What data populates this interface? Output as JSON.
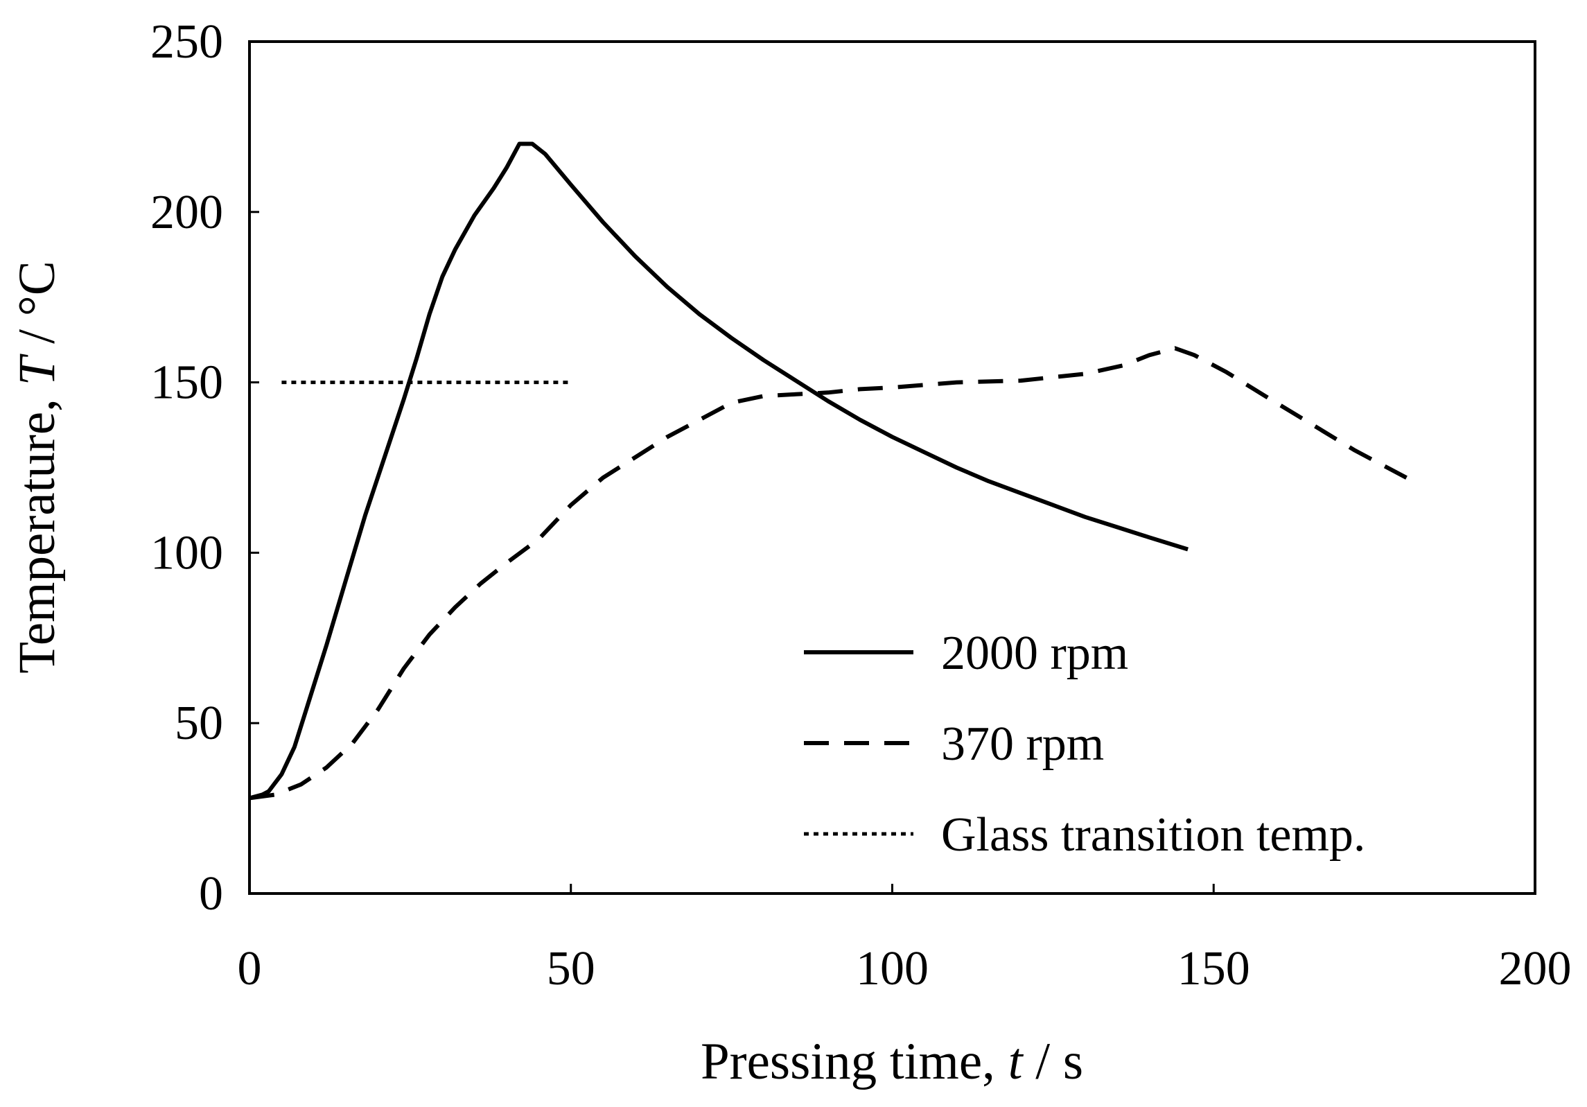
{
  "chart_data": {
    "type": "line",
    "title": "",
    "xlabel": {
      "main": "Pressing time, ",
      "var": "t",
      "unit": " / s"
    },
    "ylabel": {
      "main": "Temperature, ",
      "var": "T",
      "unit": " / °C"
    },
    "xlim": [
      0,
      200
    ],
    "ylim": [
      0,
      250
    ],
    "xticks": [
      0,
      50,
      100,
      150,
      200
    ],
    "yticks": [
      0,
      50,
      100,
      150,
      200,
      250
    ],
    "grid": false,
    "legend_position": "bottom-right",
    "series": [
      {
        "name": "2000 rpm",
        "style": "solid",
        "color": "#000000",
        "points": [
          [
            0,
            28
          ],
          [
            2,
            29
          ],
          [
            3,
            30
          ],
          [
            5,
            35
          ],
          [
            7,
            43
          ],
          [
            9,
            55
          ],
          [
            12,
            73
          ],
          [
            15,
            92
          ],
          [
            18,
            111
          ],
          [
            21,
            128
          ],
          [
            24,
            145
          ],
          [
            26,
            157
          ],
          [
            28,
            170
          ],
          [
            30,
            181
          ],
          [
            32,
            189
          ],
          [
            35,
            199
          ],
          [
            38,
            207
          ],
          [
            40,
            213
          ],
          [
            42,
            220
          ],
          [
            44,
            220
          ],
          [
            46,
            217
          ],
          [
            50,
            208
          ],
          [
            55,
            197
          ],
          [
            60,
            187
          ],
          [
            65,
            178
          ],
          [
            70,
            170
          ],
          [
            75,
            163
          ],
          [
            80,
            156.5
          ],
          [
            85,
            150.5
          ],
          [
            90,
            144.5
          ],
          [
            95,
            139
          ],
          [
            100,
            134
          ],
          [
            105,
            129.5
          ],
          [
            110,
            125
          ],
          [
            115,
            121
          ],
          [
            120,
            117.5
          ],
          [
            125,
            114
          ],
          [
            130,
            110.5
          ],
          [
            135,
            107.5
          ],
          [
            140,
            104.5
          ],
          [
            146,
            101
          ]
        ]
      },
      {
        "name": "370 rpm",
        "style": "dashed",
        "color": "#000000",
        "points": [
          [
            0,
            28
          ],
          [
            4,
            29
          ],
          [
            8,
            32
          ],
          [
            12,
            37
          ],
          [
            16,
            44
          ],
          [
            20,
            54
          ],
          [
            24,
            66
          ],
          [
            28,
            76
          ],
          [
            32,
            84
          ],
          [
            36,
            91
          ],
          [
            40,
            97
          ],
          [
            45,
            104
          ],
          [
            50,
            114
          ],
          [
            55,
            122
          ],
          [
            60,
            128
          ],
          [
            65,
            134
          ],
          [
            70,
            139
          ],
          [
            75,
            144
          ],
          [
            80,
            146
          ],
          [
            85,
            146.5
          ],
          [
            90,
            147
          ],
          [
            95,
            148
          ],
          [
            100,
            148.5
          ],
          [
            110,
            150
          ],
          [
            120,
            150.5
          ],
          [
            130,
            152.5
          ],
          [
            136,
            155
          ],
          [
            140,
            158
          ],
          [
            144,
            160
          ],
          [
            147,
            158
          ],
          [
            152,
            153
          ],
          [
            158,
            146
          ],
          [
            165,
            138
          ],
          [
            172,
            130
          ],
          [
            180,
            122
          ]
        ]
      },
      {
        "name": "Glass transition temp.",
        "style": "dotted",
        "color": "#000000",
        "points": [
          [
            5,
            150
          ],
          [
            50,
            150
          ]
        ]
      }
    ]
  }
}
